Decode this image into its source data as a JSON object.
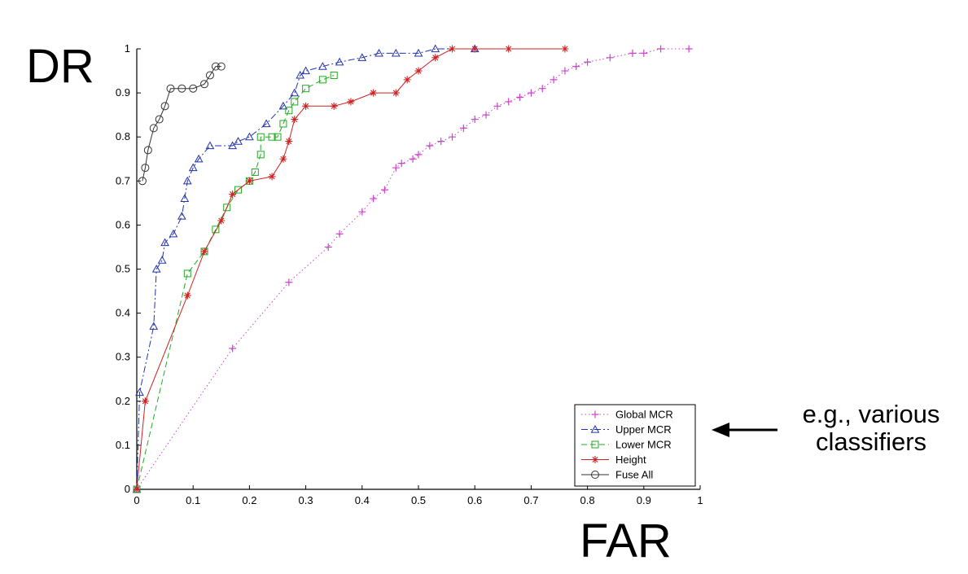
{
  "y_axis_caption": "DR",
  "x_axis_caption": "FAR",
  "annotation": {
    "line1": "e.g., various",
    "line2": "classifiers"
  },
  "chart_data": {
    "type": "line",
    "xlim": [
      0,
      1
    ],
    "ylim": [
      0,
      1
    ],
    "x_ticks": [
      "0",
      "0.1",
      "0.2",
      "0.3",
      "0.4",
      "0.5",
      "0.6",
      "0.7",
      "0.8",
      "0.9",
      "1"
    ],
    "y_ticks": [
      "0",
      "0.1",
      "0.2",
      "0.3",
      "0.4",
      "0.5",
      "0.6",
      "0.7",
      "0.8",
      "0.9",
      "1"
    ],
    "grid": false,
    "legend_position": "bottom-right",
    "series": [
      {
        "name": "Global MCR",
        "color": "#cc44cc",
        "marker": "plus",
        "line_style": "dotted",
        "points": [
          [
            0,
            0
          ],
          [
            0.17,
            0.32
          ],
          [
            0.27,
            0.47
          ],
          [
            0.34,
            0.55
          ],
          [
            0.36,
            0.58
          ],
          [
            0.4,
            0.63
          ],
          [
            0.42,
            0.66
          ],
          [
            0.44,
            0.68
          ],
          [
            0.46,
            0.73
          ],
          [
            0.47,
            0.74
          ],
          [
            0.49,
            0.75
          ],
          [
            0.5,
            0.76
          ],
          [
            0.52,
            0.78
          ],
          [
            0.54,
            0.79
          ],
          [
            0.56,
            0.8
          ],
          [
            0.58,
            0.82
          ],
          [
            0.6,
            0.84
          ],
          [
            0.62,
            0.85
          ],
          [
            0.64,
            0.87
          ],
          [
            0.66,
            0.88
          ],
          [
            0.68,
            0.89
          ],
          [
            0.7,
            0.9
          ],
          [
            0.72,
            0.91
          ],
          [
            0.74,
            0.93
          ],
          [
            0.76,
            0.95
          ],
          [
            0.78,
            0.96
          ],
          [
            0.8,
            0.97
          ],
          [
            0.84,
            0.98
          ],
          [
            0.88,
            0.99
          ],
          [
            0.9,
            0.99
          ],
          [
            0.93,
            1.0
          ],
          [
            0.98,
            1.0
          ]
        ]
      },
      {
        "name": "Upper MCR",
        "color": "#2233aa",
        "marker": "triangle",
        "line_style": "dashdot",
        "points": [
          [
            0,
            0
          ],
          [
            0.005,
            0.22
          ],
          [
            0.03,
            0.37
          ],
          [
            0.035,
            0.5
          ],
          [
            0.045,
            0.52
          ],
          [
            0.05,
            0.56
          ],
          [
            0.065,
            0.58
          ],
          [
            0.08,
            0.62
          ],
          [
            0.085,
            0.66
          ],
          [
            0.09,
            0.7
          ],
          [
            0.1,
            0.73
          ],
          [
            0.11,
            0.75
          ],
          [
            0.13,
            0.78
          ],
          [
            0.17,
            0.78
          ],
          [
            0.18,
            0.79
          ],
          [
            0.2,
            0.8
          ],
          [
            0.23,
            0.83
          ],
          [
            0.26,
            0.87
          ],
          [
            0.28,
            0.9
          ],
          [
            0.29,
            0.94
          ],
          [
            0.3,
            0.95
          ],
          [
            0.33,
            0.96
          ],
          [
            0.36,
            0.97
          ],
          [
            0.4,
            0.98
          ],
          [
            0.43,
            0.99
          ],
          [
            0.46,
            0.99
          ],
          [
            0.5,
            0.99
          ],
          [
            0.53,
            1.0
          ],
          [
            0.6,
            1.0
          ]
        ]
      },
      {
        "name": "Lower MCR",
        "color": "#22aa22",
        "marker": "square",
        "line_style": "dashed",
        "points": [
          [
            0,
            0
          ],
          [
            0.09,
            0.49
          ],
          [
            0.12,
            0.54
          ],
          [
            0.14,
            0.59
          ],
          [
            0.16,
            0.64
          ],
          [
            0.18,
            0.68
          ],
          [
            0.2,
            0.7
          ],
          [
            0.21,
            0.72
          ],
          [
            0.22,
            0.76
          ],
          [
            0.22,
            0.8
          ],
          [
            0.24,
            0.8
          ],
          [
            0.25,
            0.8
          ],
          [
            0.26,
            0.83
          ],
          [
            0.27,
            0.86
          ],
          [
            0.28,
            0.88
          ],
          [
            0.3,
            0.91
          ],
          [
            0.33,
            0.93
          ],
          [
            0.35,
            0.94
          ]
        ]
      },
      {
        "name": "Height",
        "color": "#cc2222",
        "marker": "star",
        "line_style": "solid",
        "points": [
          [
            0,
            0
          ],
          [
            0.015,
            0.2
          ],
          [
            0.09,
            0.44
          ],
          [
            0.12,
            0.54
          ],
          [
            0.15,
            0.61
          ],
          [
            0.17,
            0.67
          ],
          [
            0.2,
            0.7
          ],
          [
            0.24,
            0.71
          ],
          [
            0.26,
            0.75
          ],
          [
            0.27,
            0.79
          ],
          [
            0.28,
            0.84
          ],
          [
            0.3,
            0.87
          ],
          [
            0.35,
            0.87
          ],
          [
            0.38,
            0.88
          ],
          [
            0.42,
            0.9
          ],
          [
            0.46,
            0.9
          ],
          [
            0.48,
            0.93
          ],
          [
            0.5,
            0.95
          ],
          [
            0.53,
            0.98
          ],
          [
            0.56,
            1.0
          ],
          [
            0.6,
            1.0
          ],
          [
            0.66,
            1.0
          ],
          [
            0.76,
            1.0
          ]
        ]
      },
      {
        "name": "Fuse All",
        "color": "#333333",
        "marker": "circle",
        "line_style": "solid",
        "points": [
          [
            0.01,
            0.7
          ],
          [
            0.015,
            0.73
          ],
          [
            0.02,
            0.77
          ],
          [
            0.03,
            0.82
          ],
          [
            0.04,
            0.84
          ],
          [
            0.05,
            0.87
          ],
          [
            0.06,
            0.91
          ],
          [
            0.08,
            0.91
          ],
          [
            0.1,
            0.91
          ],
          [
            0.12,
            0.92
          ],
          [
            0.13,
            0.94
          ],
          [
            0.14,
            0.96
          ],
          [
            0.15,
            0.96
          ]
        ]
      }
    ]
  }
}
